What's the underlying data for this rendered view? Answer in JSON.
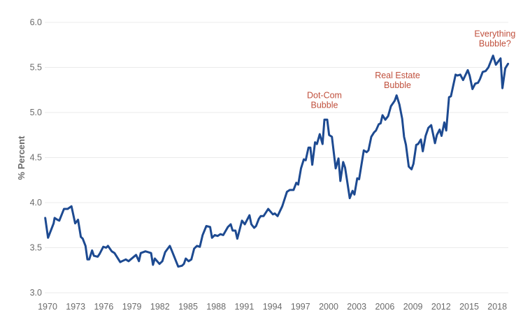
{
  "chart_data": {
    "type": "line",
    "title": "",
    "xlabel": "",
    "ylabel": "% Percent",
    "ylim": [
      3.0,
      6.0
    ],
    "xlim": [
      1970,
      2019.3
    ],
    "yticks": [
      "3.0",
      "3.5",
      "4.0",
      "4.5",
      "5.0",
      "5.5",
      "6.0"
    ],
    "xticks": [
      "1970",
      "1973",
      "1976",
      "1979",
      "1982",
      "1985",
      "1988",
      "1991",
      "1994",
      "1997",
      "2000",
      "2003",
      "2006",
      "2009",
      "2012",
      "2015",
      "2018"
    ],
    "grid": "horizontal",
    "colors": {
      "line": "#1d4a91",
      "annotation": "#c0503d",
      "grid": "#ebebeb",
      "tick": "#6b6b6b"
    },
    "series": [
      {
        "name": "% Percent",
        "x": [
          1969.9,
          1970.2,
          1970.8,
          1970.9,
          1971.2,
          1971.4,
          1971.9,
          1972.3,
          1972.7,
          1973.1,
          1973.4,
          1973.7,
          1973.9,
          1974.2,
          1974.4,
          1974.6,
          1974.9,
          1975.1,
          1975.5,
          1975.7,
          1976.1,
          1976.4,
          1976.6,
          1977.0,
          1977.3,
          1977.9,
          1978.1,
          1978.5,
          1978.8,
          1979.6,
          1979.9,
          1980.1,
          1980.6,
          1980.9,
          1981.2,
          1981.4,
          1981.6,
          1982.1,
          1982.4,
          1982.7,
          1983.2,
          1983.4,
          1984.1,
          1984.5,
          1984.7,
          1984.9,
          1985.2,
          1985.5,
          1985.8,
          1986.1,
          1986.4,
          1986.7,
          1987.1,
          1987.5,
          1987.7,
          1988.0,
          1988.3,
          1988.6,
          1988.9,
          1989.4,
          1989.7,
          1989.9,
          1990.2,
          1990.4,
          1990.9,
          1991.2,
          1991.7,
          1991.9,
          1992.2,
          1992.4,
          1992.7,
          1992.9,
          1993.2,
          1993.7,
          1994.2,
          1994.4,
          1994.7,
          1995.2,
          1995.7,
          1996.0,
          1996.4,
          1996.7,
          1996.9,
          1997.2,
          1997.5,
          1997.7,
          1998.0,
          1998.2,
          1998.4,
          1998.7,
          1998.9,
          1999.2,
          1999.5,
          1999.7,
          2000.0,
          2000.2,
          2000.5,
          2000.9,
          2001.2,
          2001.4,
          2001.7,
          2001.9,
          2002.1,
          2002.4,
          2002.7,
          2002.9,
          2003.2,
          2003.4,
          2003.9,
          2004.2,
          2004.4,
          2004.7,
          2005.0,
          2005.2,
          2005.5,
          2005.7,
          2005.9,
          2006.2,
          2006.5,
          2006.8,
          2007.2,
          2007.4,
          2007.7,
          2008.0,
          2008.2,
          2008.4,
          2008.7,
          2009.0,
          2009.2,
          2009.5,
          2009.7,
          2010.0,
          2010.2,
          2010.5,
          2010.8,
          2011.1,
          2011.5,
          2011.7,
          2012.0,
          2012.2,
          2012.5,
          2012.7,
          2013.0,
          2013.2,
          2013.7,
          2013.9,
          2014.2,
          2014.5,
          2015.0,
          2015.2,
          2015.5,
          2015.8,
          2016.1,
          2016.3,
          2016.6,
          2016.9,
          2017.2,
          2017.7,
          2018.0,
          2018.5,
          2018.7,
          2019.0,
          2019.3
        ],
        "values": [
          3.83,
          3.61,
          3.77,
          3.83,
          3.81,
          3.8,
          3.93,
          3.93,
          3.96,
          3.77,
          3.81,
          3.62,
          3.6,
          3.52,
          3.37,
          3.37,
          3.47,
          3.41,
          3.4,
          3.43,
          3.51,
          3.5,
          3.52,
          3.46,
          3.44,
          3.34,
          3.35,
          3.37,
          3.35,
          3.42,
          3.35,
          3.44,
          3.46,
          3.45,
          3.44,
          3.31,
          3.38,
          3.32,
          3.35,
          3.45,
          3.52,
          3.47,
          3.29,
          3.3,
          3.32,
          3.38,
          3.35,
          3.37,
          3.49,
          3.52,
          3.51,
          3.64,
          3.74,
          3.73,
          3.61,
          3.64,
          3.63,
          3.65,
          3.64,
          3.73,
          3.76,
          3.69,
          3.69,
          3.6,
          3.8,
          3.76,
          3.86,
          3.76,
          3.72,
          3.74,
          3.82,
          3.85,
          3.85,
          3.93,
          3.87,
          3.88,
          3.85,
          3.96,
          4.12,
          4.14,
          4.14,
          4.22,
          4.2,
          4.38,
          4.48,
          4.47,
          4.61,
          4.61,
          4.42,
          4.67,
          4.65,
          4.76,
          4.65,
          4.92,
          4.92,
          4.75,
          4.73,
          4.38,
          4.49,
          4.24,
          4.45,
          4.39,
          4.26,
          4.05,
          4.13,
          4.09,
          4.27,
          4.26,
          4.58,
          4.56,
          4.58,
          4.73,
          4.78,
          4.8,
          4.87,
          4.88,
          4.97,
          4.92,
          4.96,
          5.07,
          5.13,
          5.19,
          5.09,
          4.93,
          4.73,
          4.64,
          4.4,
          4.37,
          4.43,
          4.64,
          4.65,
          4.7,
          4.57,
          4.74,
          4.83,
          4.86,
          4.66,
          4.75,
          4.81,
          4.74,
          4.89,
          4.8,
          5.17,
          5.18,
          5.42,
          5.41,
          5.42,
          5.36,
          5.47,
          5.41,
          5.26,
          5.32,
          5.33,
          5.37,
          5.45,
          5.46,
          5.5,
          5.63,
          5.53,
          5.6,
          5.27,
          5.49,
          5.54
        ]
      }
    ],
    "annotations": [
      {
        "lines": [
          "Dot-Com",
          "Bubble"
        ],
        "x": 1999.7,
        "y": 5.16
      },
      {
        "lines": [
          "Real Estate",
          "Bubble"
        ],
        "x": 2007.5,
        "y": 5.38
      },
      {
        "lines": [
          "Everything",
          "Bubble?"
        ],
        "x": 2017.9,
        "y": 5.84
      }
    ]
  }
}
